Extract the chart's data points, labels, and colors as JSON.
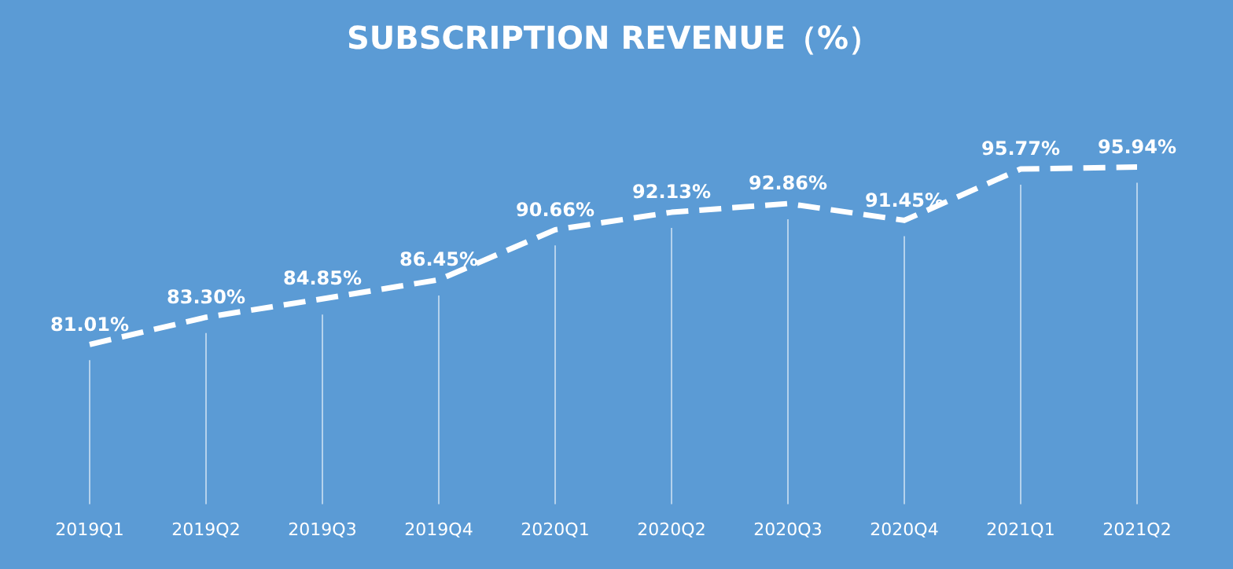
{
  "chart_data": {
    "type": "line",
    "title": "SUBSCRIPTION REVENUE（%）",
    "categories": [
      "2019Q1",
      "2019Q2",
      "2019Q3",
      "2019Q4",
      "2020Q1",
      "2020Q2",
      "2020Q3",
      "2020Q4",
      "2021Q1",
      "2021Q2"
    ],
    "series": [
      {
        "color": "#ffffff",
        "values": [
          81.01,
          83.3,
          84.85,
          86.45,
          90.66,
          92.13,
          92.86,
          91.45,
          95.77,
          95.94
        ],
        "value_labels": [
          "81.01%",
          "83.30%",
          "84.85%",
          "86.45%",
          "90.66%",
          "92.13%",
          "92.86%",
          "91.45%",
          "95.77%",
          "95.94%"
        ]
      }
    ],
    "grid": "x",
    "tick_labels": "x",
    "marker": "none",
    "line_style": "dashed"
  }
}
